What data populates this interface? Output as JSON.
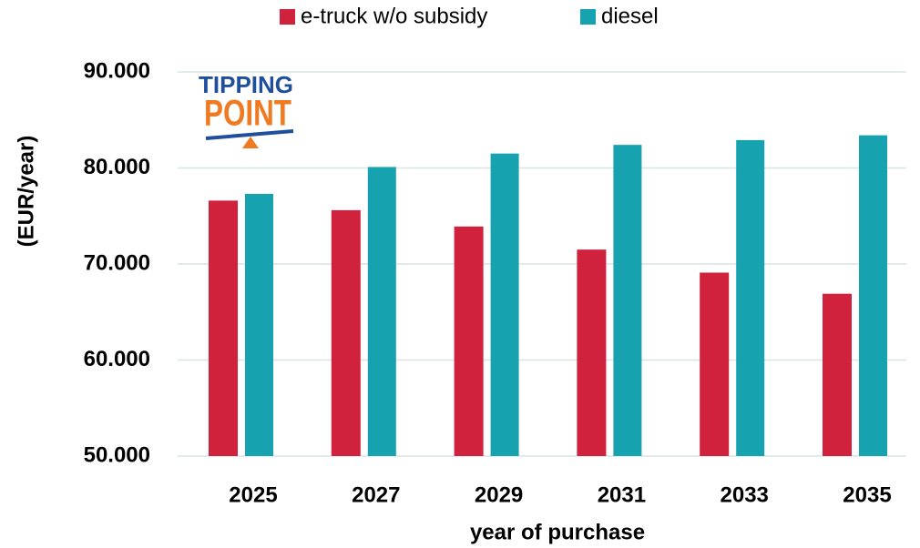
{
  "chart_data": {
    "type": "bar",
    "logo": {
      "line1": "TIPPING",
      "line2": "POINT"
    },
    "categories": [
      "2025",
      "2027",
      "2029",
      "2031",
      "2033",
      "2035"
    ],
    "series": [
      {
        "name": "e-truck w/o subsidy",
        "color": "#d0223d",
        "values": [
          76600,
          75600,
          73900,
          71500,
          69100,
          66900
        ]
      },
      {
        "name": "diesel",
        "color": "#17a2b0",
        "values": [
          77300,
          80100,
          81500,
          82400,
          82900,
          83400
        ]
      }
    ],
    "x_label": "year of purchase",
    "y_label": "(EUR/year)",
    "ylim": [
      50000,
      90000
    ],
    "yticks": [
      {
        "value": 50000,
        "label": "50.000"
      },
      {
        "value": 60000,
        "label": "60.000"
      },
      {
        "value": 70000,
        "label": "70.000"
      },
      {
        "value": 80000,
        "label": "80.000"
      },
      {
        "value": 90000,
        "label": "90.000"
      }
    ],
    "grid": true,
    "legend": "top"
  }
}
